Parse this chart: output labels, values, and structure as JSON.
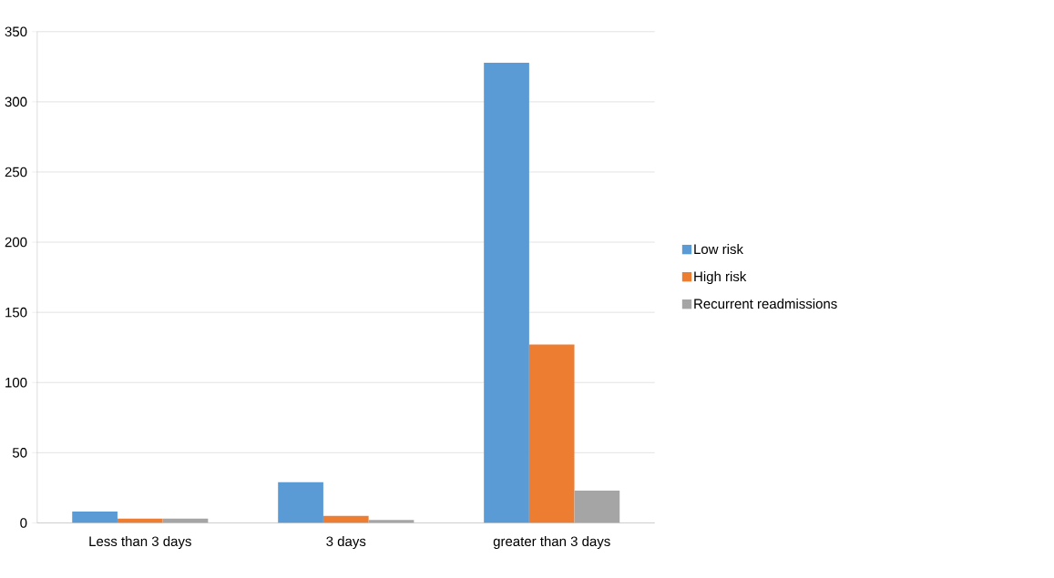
{
  "chart_data": {
    "type": "bar",
    "categories": [
      "Less than 3 days",
      "3 days",
      "greater than 3 days"
    ],
    "series": [
      {
        "name": "Low risk",
        "color": "#5b9bd5",
        "values": [
          8,
          29,
          328
        ]
      },
      {
        "name": "High risk",
        "color": "#ed7d31",
        "values": [
          3,
          5,
          127
        ]
      },
      {
        "name": "Recurrent readmissions",
        "color": "#a5a5a5",
        "values": [
          3,
          2,
          23
        ]
      }
    ],
    "ylim": [
      0,
      350
    ],
    "yticks": [
      0,
      50,
      100,
      150,
      200,
      250,
      300,
      350
    ],
    "grid": "y",
    "legend": "right"
  }
}
